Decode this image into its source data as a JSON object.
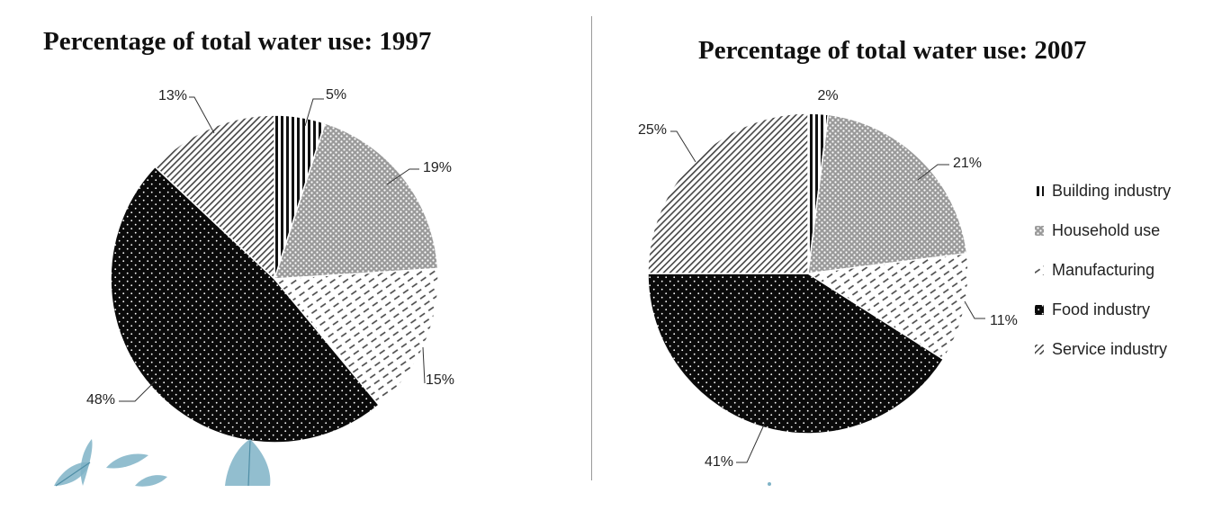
{
  "colors": {
    "building": "#111111",
    "household": "#555555",
    "manufacturing": "#444444",
    "food": "#0a0a0a",
    "service": "#444444",
    "leaf": "#7fb3c7"
  },
  "legend": {
    "position": "right",
    "items": [
      {
        "key": "building",
        "label": "Building industry"
      },
      {
        "key": "household",
        "label": "Household use"
      },
      {
        "key": "manufacturing",
        "label": "Manufacturing"
      },
      {
        "key": "food",
        "label": "Food industry"
      },
      {
        "key": "service",
        "label": "Service industry"
      }
    ]
  },
  "chart_data": [
    {
      "type": "pie",
      "title": "Percentage of total water use: 1997",
      "categories": [
        "Building industry",
        "Household use",
        "Manufacturing",
        "Food industry",
        "Service industry"
      ],
      "keys": [
        "building",
        "household",
        "manufacturing",
        "food",
        "service"
      ],
      "values": [
        5,
        19,
        15,
        48,
        13
      ],
      "labels": [
        "5%",
        "19%",
        "15%",
        "48%",
        "13%"
      ]
    },
    {
      "type": "pie",
      "title": "Percentage of total water use: 2007",
      "categories": [
        "Building industry",
        "Household use",
        "Manufacturing",
        "Food industry",
        "Service industry"
      ],
      "keys": [
        "building",
        "household",
        "manufacturing",
        "food",
        "service"
      ],
      "values": [
        2,
        21,
        11,
        41,
        25
      ],
      "labels": [
        "2%",
        "21%",
        "11%",
        "41%",
        "25%"
      ]
    }
  ]
}
